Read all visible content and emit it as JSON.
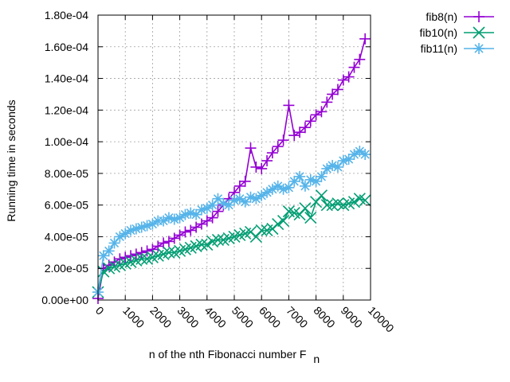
{
  "chart_data": {
    "type": "line",
    "xlabel": "n of the nth Fibonacci number F",
    "xlabel_subscript": "n",
    "ylabel": "Running time in seconds",
    "xlim": [
      0,
      10000
    ],
    "ylim": [
      0,
      0.00018
    ],
    "grid": true,
    "legend_position": "outside-top-right",
    "x_ticks": [
      0,
      1000,
      2000,
      3000,
      4000,
      5000,
      6000,
      7000,
      8000,
      9000,
      10000
    ],
    "x_tick_labels": [
      "0",
      "1000",
      "2000",
      "3000",
      "4000",
      "5000",
      "6000",
      "7000",
      "8000",
      "9000",
      "10000"
    ],
    "y_ticks": [
      0,
      2e-05,
      4e-05,
      6e-05,
      8e-05,
      0.0001,
      0.00012,
      0.00014,
      0.00016,
      0.00018
    ],
    "y_tick_labels": [
      "0.00e+00",
      "2.00e-05",
      "4.00e-05",
      "6.00e-05",
      "8.00e-05",
      "1.00e-04",
      "1.20e-04",
      "1.40e-04",
      "1.60e-04",
      "1.80e-04"
    ],
    "x": [
      0,
      200,
      400,
      600,
      800,
      1000,
      1200,
      1400,
      1600,
      1800,
      2000,
      2200,
      2400,
      2600,
      2800,
      3000,
      3200,
      3400,
      3600,
      3800,
      4000,
      4200,
      4400,
      4600,
      4800,
      5000,
      5200,
      5400,
      5600,
      5800,
      6000,
      6200,
      6400,
      6600,
      6800,
      7000,
      7200,
      7400,
      7600,
      7800,
      8000,
      8200,
      8400,
      8600,
      8800,
      9000,
      9200,
      9400,
      9600,
      9800
    ],
    "series": [
      {
        "name": "fib8(n)",
        "color": "#9400d3",
        "marker": "plus",
        "values": [
          1e-06,
          2e-05,
          2.2e-05,
          2.4e-05,
          2.6e-05,
          2.7e-05,
          2.8e-05,
          2.9e-05,
          3e-05,
          3.1e-05,
          3.2e-05,
          3.4e-05,
          3.6e-05,
          3.7e-05,
          3.9e-05,
          4.1e-05,
          4.3e-05,
          4.4e-05,
          4.6e-05,
          4.8e-05,
          5e-05,
          5.2e-05,
          5.6e-05,
          6e-05,
          6.4e-05,
          6.8e-05,
          7.2e-05,
          7.5e-05,
          9.6e-05,
          8.4e-05,
          8.3e-05,
          8.8e-05,
          9.3e-05,
          9.7e-05,
          0.000101,
          0.000123,
          0.000104,
          0.000106,
          0.000109,
          0.000113,
          0.000117,
          0.000119,
          0.000125,
          0.00013,
          0.000133,
          0.000139,
          0.000141,
          0.000147,
          0.000152,
          0.000165
        ]
      },
      {
        "name": "fib10(n)",
        "color": "#009e73",
        "marker": "x",
        "values": [
          5e-06,
          1.8e-05,
          2e-05,
          2.1e-05,
          2.2e-05,
          2.3e-05,
          2.4e-05,
          2.5e-05,
          2.6e-05,
          2.6e-05,
          2.7e-05,
          2.8e-05,
          2.9e-05,
          3e-05,
          3e-05,
          3.1e-05,
          3.2e-05,
          3.3e-05,
          3.4e-05,
          3.5e-05,
          3.5e-05,
          3.7e-05,
          3.8e-05,
          3.8e-05,
          3.9e-05,
          4e-05,
          4.1e-05,
          4.2e-05,
          4.3e-05,
          4e-05,
          4.4e-05,
          4.4e-05,
          4.5e-05,
          4.8e-05,
          5e-05,
          5.6e-05,
          5.5e-05,
          5.4e-05,
          5.8e-05,
          5.2e-05,
          6.2e-05,
          6.6e-05,
          6e-05,
          6e-05,
          6.1e-05,
          6e-05,
          6.1e-05,
          6.2e-05,
          6.4e-05,
          6.3e-05
        ]
      },
      {
        "name": "fib11(n)",
        "color": "#56b4e9",
        "marker": "star",
        "values": [
          5e-06,
          2.8e-05,
          3.1e-05,
          3.6e-05,
          4e-05,
          4.2e-05,
          4.4e-05,
          4.5e-05,
          4.6e-05,
          4.7e-05,
          4.8e-05,
          5e-05,
          5e-05,
          5.2e-05,
          5.1e-05,
          5.2e-05,
          5.4e-05,
          5.5e-05,
          5.4e-05,
          5.7e-05,
          5.8e-05,
          6e-05,
          6.4e-05,
          6.1e-05,
          6e-05,
          6.3e-05,
          6.4e-05,
          6.2e-05,
          6.5e-05,
          6.4e-05,
          6.6e-05,
          6.8e-05,
          7e-05,
          7.2e-05,
          7e-05,
          7.1e-05,
          7.5e-05,
          7.8e-05,
          7.2e-05,
          7.6e-05,
          7.5e-05,
          7.8e-05,
          8.3e-05,
          8.5e-05,
          8.4e-05,
          8.8e-05,
          8.9e-05,
          9.2e-05,
          9.4e-05,
          9.2e-05
        ]
      }
    ]
  }
}
